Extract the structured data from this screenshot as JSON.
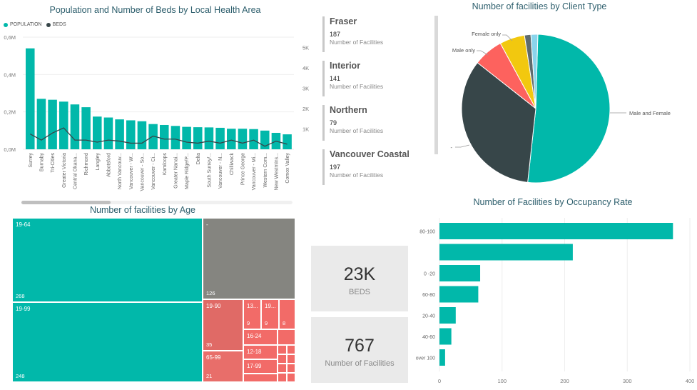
{
  "colors": {
    "teal": "#01b8aa",
    "dark": "#374649",
    "red": "#fd625e",
    "yellow": "#f2c80f",
    "gray": "#5f6b6d",
    "lightblue": "#8ad4eb",
    "olive": "#858580",
    "salmon": "#e57373"
  },
  "bar_line_chart": {
    "title": "Population and Number of Beds by Local Health Area",
    "legend": [
      {
        "name": "POPULATION",
        "color": "#01b8aa"
      },
      {
        "name": "BEDS",
        "color": "#374649"
      }
    ],
    "left_ticks": [
      "0,0M",
      "0,2M",
      "0,4M",
      "0,6M"
    ],
    "right_ticks": [
      "1K",
      "2K",
      "3K",
      "4K",
      "5K"
    ]
  },
  "regions": [
    {
      "name": "Fraser",
      "value": "187",
      "label": "Number of Facilities"
    },
    {
      "name": "Interior",
      "value": "141",
      "label": "Number of Facilities"
    },
    {
      "name": "Northern",
      "value": "79",
      "label": "Number of Facilities"
    },
    {
      "name": "Vancouver Coastal",
      "value": "197",
      "label": "Number of Facilities"
    }
  ],
  "pie_chart": {
    "title": "Number of facilities by Client Type",
    "labels": {
      "male_female": "Male and Female",
      "male_only": "Male only",
      "female_only": "Female only",
      "dash": "-"
    }
  },
  "treemap": {
    "title": "Number of facilities by Age",
    "cells": [
      {
        "label": "19-64",
        "count": "268"
      },
      {
        "label": "-",
        "count": "126"
      },
      {
        "label": "19-99",
        "count": "248"
      },
      {
        "label": "19-90",
        "count": "35"
      },
      {
        "label": "65-99",
        "count": "21"
      },
      {
        "label": "13...",
        "count": "9"
      },
      {
        "label": "19...",
        "count": "9"
      },
      {
        "label": "",
        "count": "8"
      },
      {
        "label": "16-24",
        "count": ""
      },
      {
        "label": "12-18",
        "count": ""
      },
      {
        "label": "17-99",
        "count": ""
      }
    ]
  },
  "kpis": [
    {
      "value": "23K",
      "label": "BEDS"
    },
    {
      "value": "767",
      "label": "Number of Facilities"
    }
  ],
  "occupancy_chart": {
    "title": "Number of Facilities by Occupancy Rate"
  },
  "chart_data": [
    {
      "type": "bar",
      "title": "Population and Number of Beds by Local Health Area",
      "categories": [
        "Surrey",
        "Burnaby",
        "Tri-Cities",
        "Greater Victoria",
        "Central Okana...",
        "Richmond",
        "Langley",
        "Abbotsford",
        "North Vancouv...",
        "Vancouver - W...",
        "Vancouver - So...",
        "Vancouver - Ci...",
        "Kamloops",
        "Greater Nanai...",
        "Maple Ridge/P...",
        "Delta",
        "South Surrey/...",
        "Vancouver - N...",
        "Chilliwack",
        "Prince George",
        "Vancouver - Mi...",
        "Western Com...",
        "New Westmins...",
        "Comox Valley"
      ],
      "series": [
        {
          "name": "POPULATION",
          "axis": "left",
          "values": [
            540000,
            270000,
            265000,
            255000,
            240000,
            225000,
            175000,
            170000,
            160000,
            155000,
            150000,
            135000,
            130000,
            125000,
            120000,
            118000,
            117000,
            115000,
            110000,
            110000,
            108000,
            100000,
            88000,
            80000
          ]
        },
        {
          "name": "BEDS",
          "axis": "right",
          "values": [
            750,
            450,
            800,
            1050,
            450,
            450,
            350,
            450,
            400,
            300,
            300,
            650,
            500,
            500,
            350,
            300,
            400,
            300,
            450,
            300,
            450,
            150,
            400,
            250
          ]
        }
      ],
      "ylim": [
        0,
        600000
      ],
      "y2lim": [
        0,
        5500
      ]
    },
    {
      "type": "pie",
      "title": "Number of facilities by Client Type",
      "slices": [
        {
          "label": "Male and Female",
          "value": 51.5,
          "color": "#01b8aa"
        },
        {
          "label": "-",
          "value": 34,
          "color": "#374649"
        },
        {
          "label": "Male only",
          "value": 6.5,
          "color": "#fd625e"
        },
        {
          "label": "Female only",
          "value": 5.5,
          "color": "#f2c80f"
        },
        {
          "label": "",
          "value": 1.4,
          "color": "#5f6b6d"
        },
        {
          "label": "",
          "value": 1.5,
          "color": "#8ad4eb"
        }
      ]
    },
    {
      "type": "bar",
      "orientation": "horizontal",
      "title": "Number of Facilities by Occupancy Rate",
      "categories": [
        "80-100",
        "",
        "0 -20",
        "60-80",
        "20-40",
        "40-60",
        "over 100"
      ],
      "values": [
        373,
        213,
        65,
        62,
        26,
        19,
        9
      ],
      "xlim": [
        0,
        400
      ],
      "x_ticks": [
        "0",
        "100",
        "200",
        "300",
        "400"
      ]
    }
  ]
}
